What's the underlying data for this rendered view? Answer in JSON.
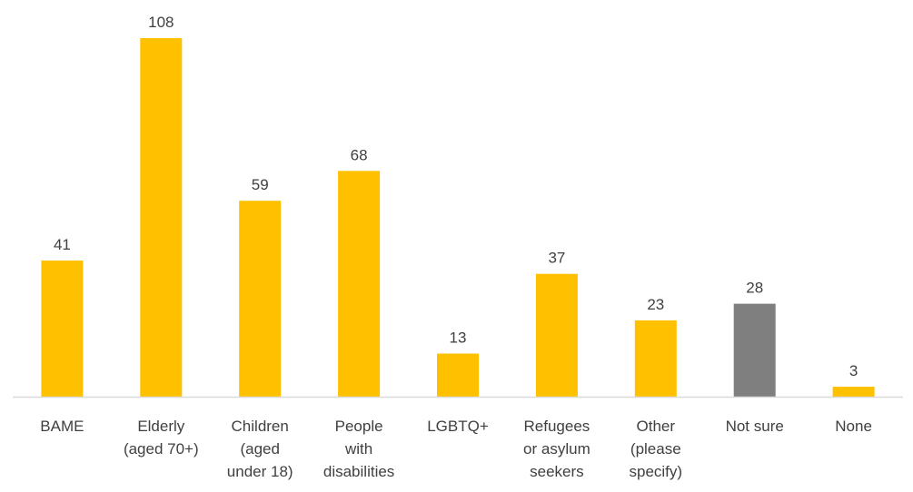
{
  "chart_data": {
    "type": "bar",
    "title": "",
    "xlabel": "",
    "ylabel": "",
    "ylim": [
      0,
      108
    ],
    "grid": false,
    "legend": "none",
    "categories": [
      [
        "BAME"
      ],
      [
        "Elderly",
        "(aged 70+)"
      ],
      [
        "Children",
        "(aged",
        "under 18)"
      ],
      [
        "People",
        "with",
        "disabilities"
      ],
      [
        "LGBTQ+"
      ],
      [
        "Refugees",
        "or asylum",
        "seekers"
      ],
      [
        "Other",
        "(please",
        "specify)"
      ],
      [
        "Not sure"
      ],
      [
        "None"
      ]
    ],
    "values": [
      41,
      108,
      59,
      68,
      13,
      37,
      23,
      28,
      3
    ],
    "colors": [
      "#FFC000",
      "#FFC000",
      "#FFC000",
      "#FFC000",
      "#FFC000",
      "#FFC000",
      "#FFC000",
      "#7F7F7F",
      "#FFC000"
    ],
    "axis_color": "#D9D9D9"
  }
}
